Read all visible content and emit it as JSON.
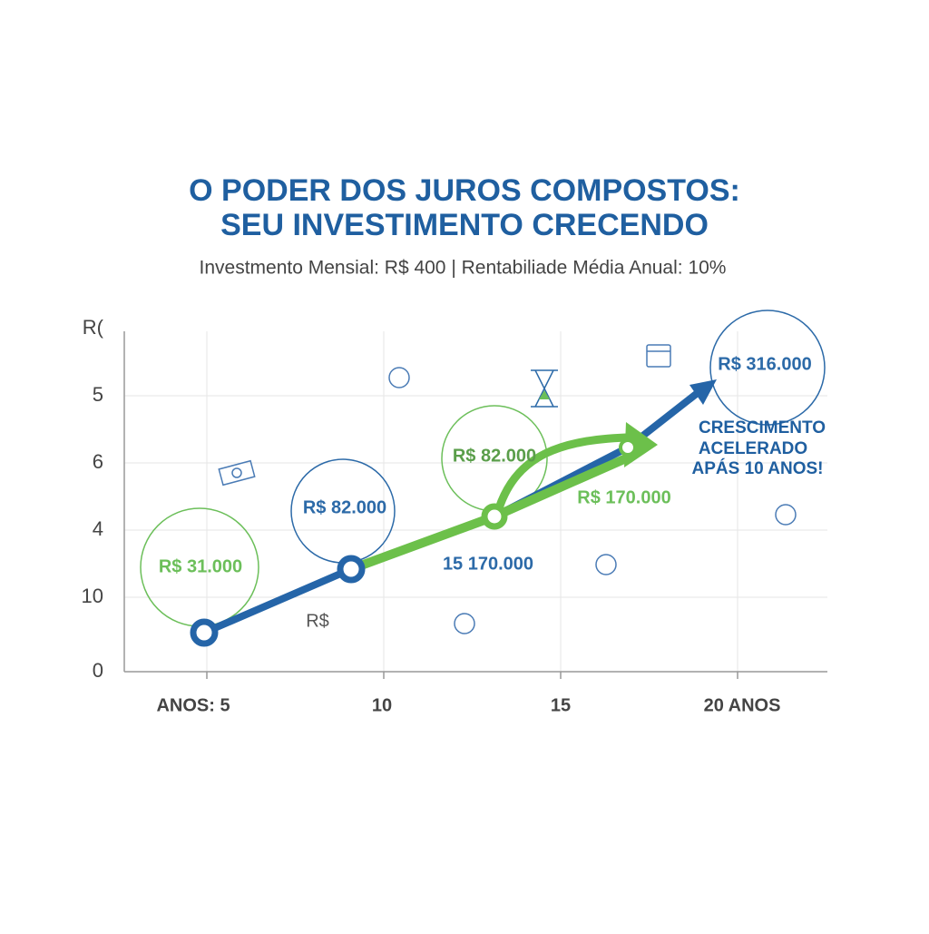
{
  "title": [
    "O PODER DOS JUROS COMPOSTOS:",
    "SEU INVESTIMENTO CRECENDO"
  ],
  "subtitle": "Investmento Mensial: R$ 400 | Rentabiliade Média Anual: 10%",
  "y_labels": [
    "R(",
    "5",
    "6",
    "4",
    "10",
    "0"
  ],
  "x_labels": [
    "ANOS: 5",
    "10",
    "15",
    "20 ANOS"
  ],
  "callouts": [
    "R$ 31.000",
    "R$ 82.000",
    "R$ 82.000",
    "R$ 316.000",
    "R$ 170.000",
    "15 170.000",
    "R$"
  ],
  "annotation": [
    "CRESCIMENTO",
    "ACELERADO",
    "APÁS 10 ANOS!"
  ]
}
